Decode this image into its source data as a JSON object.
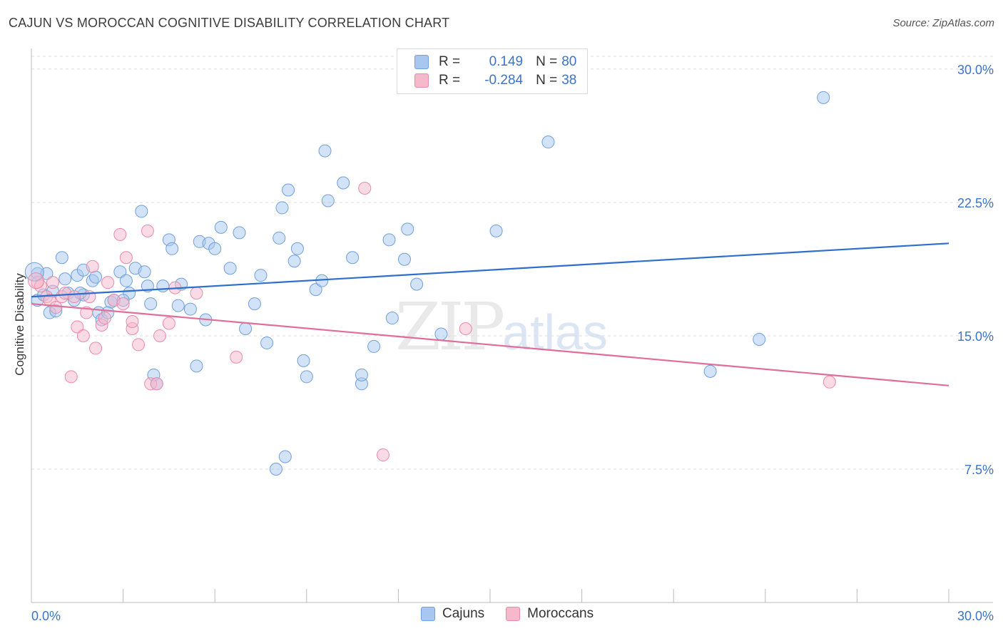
{
  "title": "CAJUN VS MOROCCAN COGNITIVE DISABILITY CORRELATION CHART",
  "source": "Source: ZipAtlas.com",
  "watermark": {
    "zip": "ZIP",
    "atlas": "atlas"
  },
  "legend": {
    "rows": [
      {
        "r_label": "R = ",
        "r_value": "0.149",
        "n_label": "N = ",
        "n_value": "80",
        "color": "#a8c7f0"
      },
      {
        "r_label": "R = ",
        "r_value": "-0.284",
        "n_label": "N = ",
        "n_value": "38",
        "color": "#f6b8cb"
      }
    ]
  },
  "bottom_legend": [
    {
      "name": "Cajuns",
      "color": "#a8c7f0"
    },
    {
      "name": "Moroccans",
      "color": "#f6b8cb"
    }
  ],
  "chart_data": {
    "type": "scatter",
    "title": "CAJUN VS MOROCCAN COGNITIVE DISABILITY CORRELATION CHART",
    "xlabel": "",
    "ylabel": "Cognitive Disability",
    "xlim": [
      0,
      30
    ],
    "ylim": [
      0,
      31
    ],
    "x_tick_labels": [
      "0.0%",
      "30.0%"
    ],
    "y_ticks": [
      7.5,
      15.0,
      22.5,
      30.0
    ],
    "y_tick_labels": [
      "7.5%",
      "15.0%",
      "22.5%",
      "30.0%"
    ],
    "grid": "horizontal dashed",
    "legend_position": "top-center",
    "series": [
      {
        "name": "Cajuns",
        "color": "#a8c7f0",
        "stroke": "#6f9fdc",
        "trend": {
          "x": [
            0,
            30
          ],
          "y": [
            17.2,
            20.2
          ],
          "color": "#2e6fcc"
        },
        "points": [
          [
            0.2,
            18.5
          ],
          [
            0.2,
            17.0
          ],
          [
            0.4,
            17.3
          ],
          [
            0.5,
            18.5
          ],
          [
            0.6,
            16.3
          ],
          [
            0.7,
            17.5
          ],
          [
            0.8,
            16.4
          ],
          [
            1.0,
            19.4
          ],
          [
            1.1,
            18.2
          ],
          [
            1.2,
            17.4
          ],
          [
            1.4,
            17.0
          ],
          [
            1.5,
            18.4
          ],
          [
            1.7,
            17.3
          ],
          [
            1.7,
            18.7
          ],
          [
            2.0,
            18.1
          ],
          [
            2.1,
            18.3
          ],
          [
            2.2,
            16.3
          ],
          [
            2.3,
            15.9
          ],
          [
            2.6,
            16.9
          ],
          [
            2.7,
            17.0
          ],
          [
            2.9,
            18.6
          ],
          [
            3.1,
            18.1
          ],
          [
            3.2,
            17.4
          ],
          [
            3.4,
            18.8
          ],
          [
            3.6,
            22.0
          ],
          [
            3.7,
            18.6
          ],
          [
            3.8,
            17.8
          ],
          [
            3.9,
            16.8
          ],
          [
            4.0,
            12.8
          ],
          [
            4.1,
            12.3
          ],
          [
            4.3,
            17.8
          ],
          [
            4.5,
            20.4
          ],
          [
            4.6,
            19.9
          ],
          [
            4.8,
            16.7
          ],
          [
            4.9,
            17.9
          ],
          [
            5.2,
            16.5
          ],
          [
            5.4,
            13.3
          ],
          [
            5.5,
            20.3
          ],
          [
            5.7,
            15.9
          ],
          [
            5.8,
            20.2
          ],
          [
            6.0,
            19.9
          ],
          [
            6.2,
            21.1
          ],
          [
            6.5,
            18.8
          ],
          [
            6.8,
            20.8
          ],
          [
            7.0,
            15.4
          ],
          [
            7.3,
            16.8
          ],
          [
            7.5,
            18.4
          ],
          [
            7.7,
            14.6
          ],
          [
            8.0,
            7.5
          ],
          [
            8.1,
            20.5
          ],
          [
            8.2,
            22.2
          ],
          [
            8.3,
            8.2
          ],
          [
            8.4,
            23.2
          ],
          [
            8.6,
            19.2
          ],
          [
            8.7,
            19.9
          ],
          [
            8.9,
            13.6
          ],
          [
            9.0,
            12.7
          ],
          [
            9.3,
            17.6
          ],
          [
            9.5,
            18.1
          ],
          [
            9.6,
            25.4
          ],
          [
            9.7,
            22.6
          ],
          [
            10.2,
            23.6
          ],
          [
            10.5,
            19.4
          ],
          [
            10.8,
            12.3
          ],
          [
            10.8,
            12.8
          ],
          [
            11.2,
            14.4
          ],
          [
            11.7,
            20.4
          ],
          [
            11.8,
            16.0
          ],
          [
            12.2,
            19.3
          ],
          [
            12.3,
            21.0
          ],
          [
            12.6,
            17.9
          ],
          [
            13.4,
            15.1
          ],
          [
            15.2,
            20.9
          ],
          [
            16.9,
            25.9
          ],
          [
            22.2,
            13.0
          ],
          [
            23.8,
            14.8
          ],
          [
            25.9,
            28.4
          ],
          [
            1.6,
            17.4
          ],
          [
            2.5,
            16.3
          ],
          [
            3.0,
            17.0
          ]
        ]
      },
      {
        "name": "Moroccans",
        "color": "#f6b8cb",
        "stroke": "#e88aa8",
        "trend": {
          "x": [
            0,
            30
          ],
          "y": [
            16.8,
            12.2
          ],
          "color": "#e06e98"
        },
        "points": [
          [
            0.2,
            18.0
          ],
          [
            0.3,
            17.8
          ],
          [
            0.5,
            17.2
          ],
          [
            0.6,
            17.0
          ],
          [
            0.7,
            18.0
          ],
          [
            0.8,
            16.6
          ],
          [
            1.0,
            17.2
          ],
          [
            1.1,
            17.4
          ],
          [
            1.3,
            12.7
          ],
          [
            1.4,
            17.2
          ],
          [
            1.5,
            15.5
          ],
          [
            1.7,
            15.0
          ],
          [
            1.8,
            16.3
          ],
          [
            2.0,
            18.9
          ],
          [
            2.1,
            14.3
          ],
          [
            2.3,
            15.6
          ],
          [
            2.5,
            18.0
          ],
          [
            2.7,
            17.0
          ],
          [
            2.9,
            20.7
          ],
          [
            3.1,
            19.4
          ],
          [
            3.3,
            15.4
          ],
          [
            3.3,
            15.8
          ],
          [
            3.5,
            14.5
          ],
          [
            3.8,
            20.9
          ],
          [
            3.9,
            12.3
          ],
          [
            4.1,
            12.3
          ],
          [
            4.5,
            15.7
          ],
          [
            4.7,
            17.7
          ],
          [
            5.4,
            17.4
          ],
          [
            6.7,
            13.8
          ],
          [
            10.9,
            23.3
          ],
          [
            11.5,
            8.3
          ],
          [
            14.2,
            15.4
          ],
          [
            26.1,
            12.4
          ],
          [
            2.4,
            16.0
          ],
          [
            1.9,
            17.2
          ],
          [
            4.2,
            15.0
          ],
          [
            3.0,
            16.8
          ]
        ]
      }
    ]
  }
}
